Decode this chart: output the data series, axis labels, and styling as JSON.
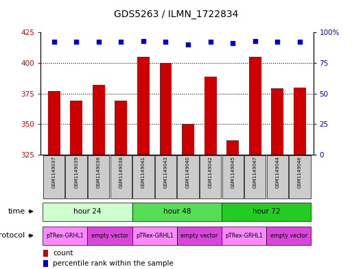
{
  "title": "GDS5263 / ILMN_1722834",
  "samples": [
    "GSM1149037",
    "GSM1149039",
    "GSM1149036",
    "GSM1149038",
    "GSM1149041",
    "GSM1149043",
    "GSM1149040",
    "GSM1149042",
    "GSM1149045",
    "GSM1149047",
    "GSM1149044",
    "GSM1149046"
  ],
  "counts": [
    377,
    369,
    382,
    369,
    405,
    400,
    350,
    389,
    337,
    405,
    379,
    380
  ],
  "percentiles": [
    92,
    92,
    92,
    92,
    93,
    92,
    90,
    92,
    91,
    93,
    92,
    92
  ],
  "ylim_left": [
    325,
    425
  ],
  "ylim_right": [
    0,
    100
  ],
  "yticks_left": [
    325,
    350,
    375,
    400,
    425
  ],
  "yticks_right": [
    0,
    25,
    50,
    75,
    100
  ],
  "bar_color": "#cc0000",
  "dot_color": "#0000cc",
  "bg_color": "#ffffff",
  "plot_bg": "#ffffff",
  "grid_lines": [
    350,
    375,
    400
  ],
  "time_groups": [
    {
      "label": "hour 24",
      "start": 0,
      "end": 4,
      "color": "#ccffcc"
    },
    {
      "label": "hour 48",
      "start": 4,
      "end": 8,
      "color": "#55dd55"
    },
    {
      "label": "hour 72",
      "start": 8,
      "end": 12,
      "color": "#22cc22"
    }
  ],
  "protocol_groups": [
    {
      "label": "pTRex-GRHL1",
      "start": 0,
      "end": 2,
      "color": "#ff88ff"
    },
    {
      "label": "empty vector",
      "start": 2,
      "end": 4,
      "color": "#dd44dd"
    },
    {
      "label": "pTRex-GRHL1",
      "start": 4,
      "end": 6,
      "color": "#ff88ff"
    },
    {
      "label": "empty vector",
      "start": 6,
      "end": 8,
      "color": "#dd44dd"
    },
    {
      "label": "pTRex-GRHL1",
      "start": 8,
      "end": 10,
      "color": "#ff88ff"
    },
    {
      "label": "empty vector",
      "start": 10,
      "end": 12,
      "color": "#dd44dd"
    }
  ],
  "left_axis_color": "#cc0000",
  "right_axis_color": "#0000cc",
  "sample_box_color": "#cccccc",
  "legend_count_color": "#cc0000",
  "legend_pct_color": "#0000cc"
}
